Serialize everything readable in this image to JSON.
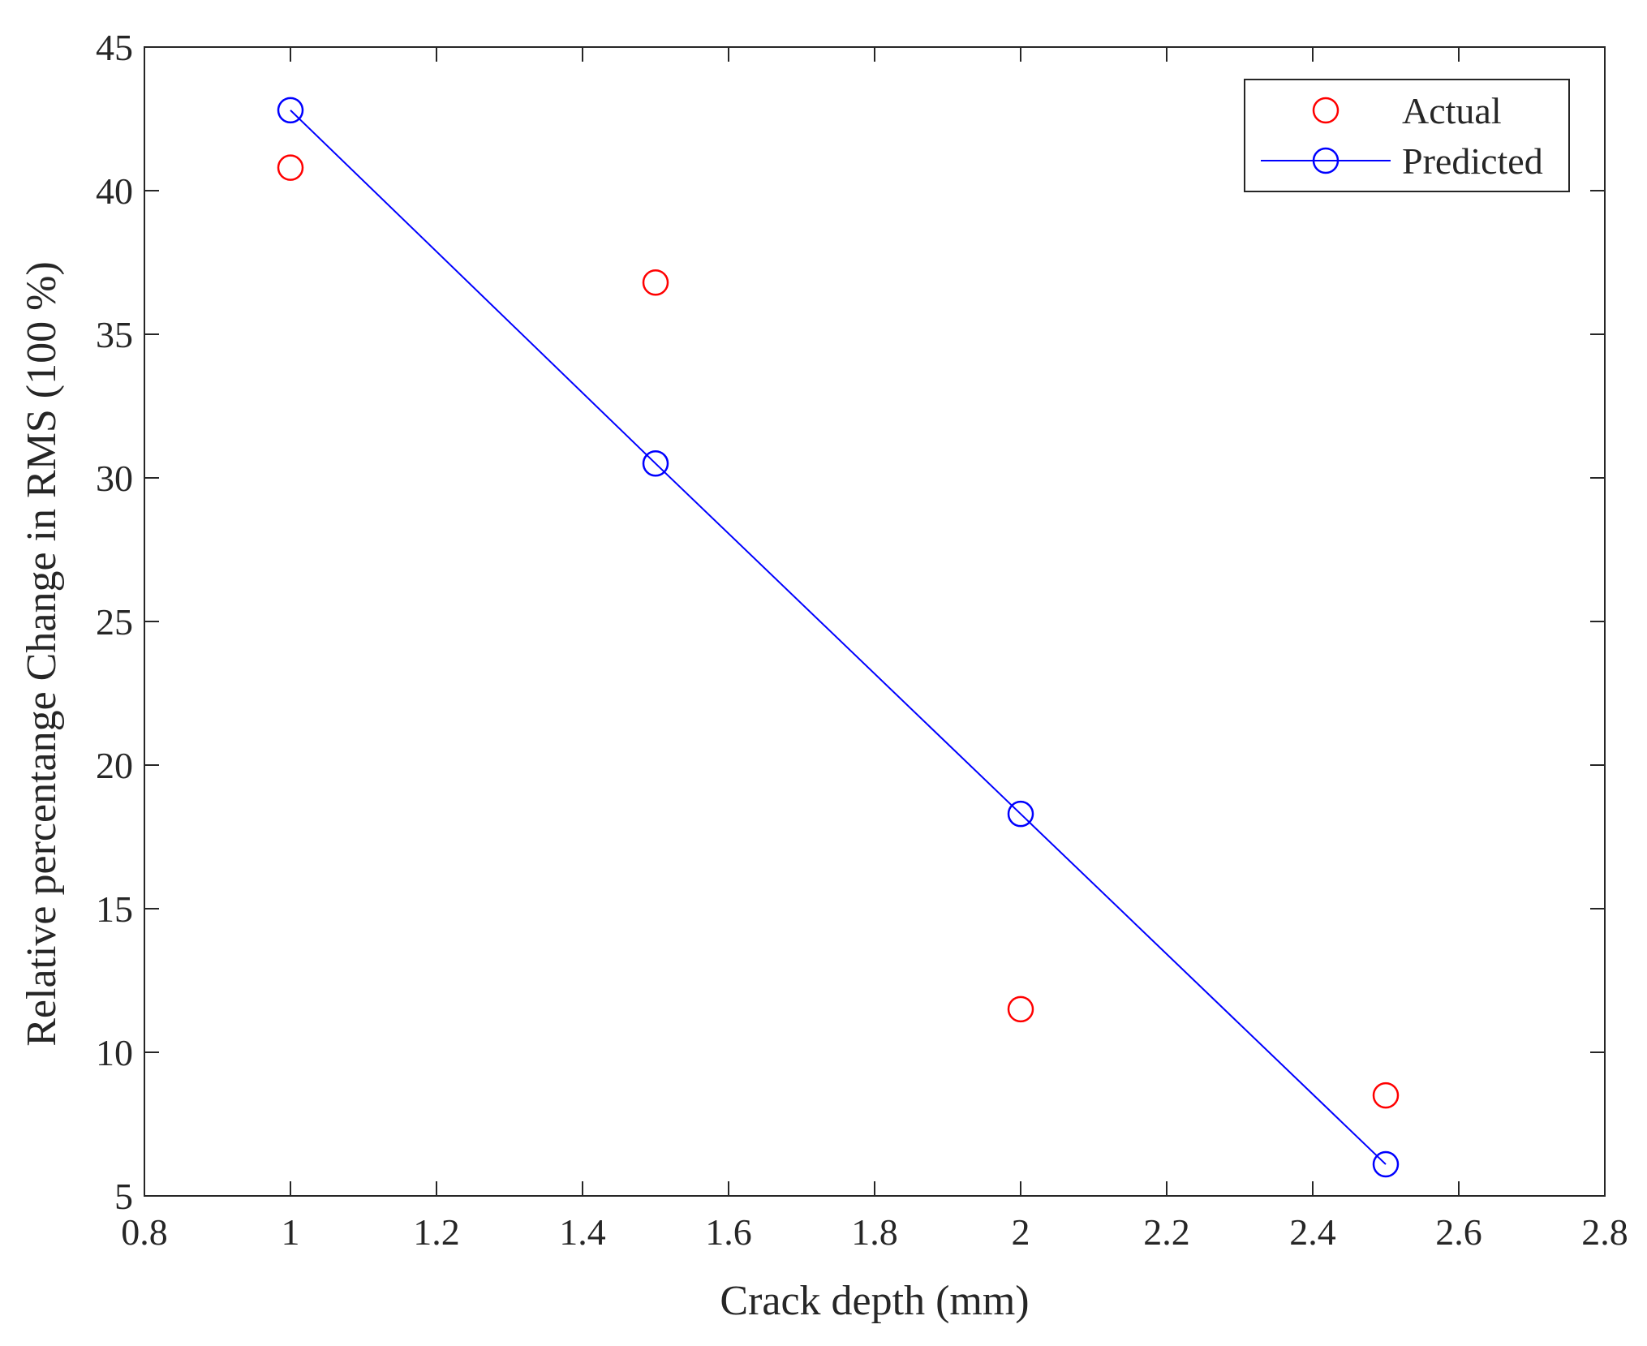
{
  "chart_data": {
    "type": "scatter",
    "xlabel": "Crack depth (mm)",
    "ylabel": "Relative percentange Change in RMS  (100 %)",
    "xlim": [
      0.8,
      2.8
    ],
    "ylim": [
      5,
      45
    ],
    "xticks": [
      "0.8",
      "1",
      "1.2",
      "1.4",
      "1.6",
      "1.8",
      "2",
      "2.2",
      "2.4",
      "2.6",
      "2.8"
    ],
    "yticks": [
      "5",
      "10",
      "15",
      "20",
      "25",
      "30",
      "35",
      "40",
      "45"
    ],
    "grid": false,
    "legend_position": "top-right",
    "series": [
      {
        "name": "Actual",
        "style": "markers",
        "color": "#ff0000",
        "x": [
          1.0,
          1.5,
          2.0,
          2.5
        ],
        "y": [
          40.8,
          36.8,
          11.5,
          8.5
        ]
      },
      {
        "name": "Predicted",
        "style": "line+markers",
        "color": "#0000ff",
        "x": [
          1.0,
          1.5,
          2.0,
          2.5
        ],
        "y": [
          42.8,
          30.5,
          18.3,
          6.1
        ]
      }
    ]
  }
}
